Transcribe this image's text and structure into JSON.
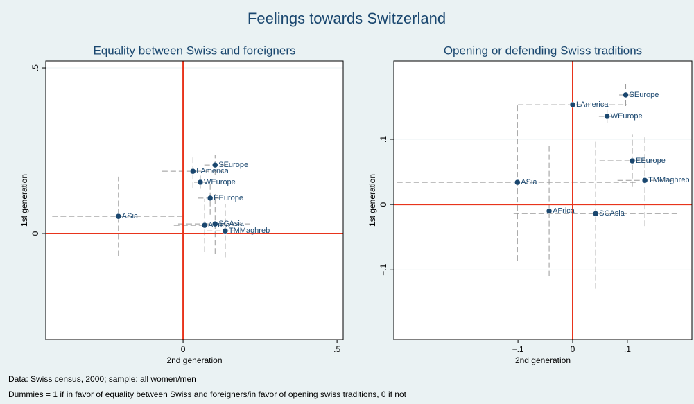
{
  "title": "Feelings towards Switzerland",
  "notes": [
    "Data: Swiss census, 2000; sample: all women/men",
    "Dummies = 1 if in favor of equality between Swiss and foreigners/in favor of opening swiss traditions, 0 if not"
  ],
  "chart_data": [
    {
      "type": "scatter",
      "title": "Equality between Swiss and foreigners",
      "xlabel": "2nd generation",
      "ylabel": "1st generation",
      "xlim": [
        -0.446,
        0.52
      ],
      "ylim": [
        -0.32,
        0.521
      ],
      "xticks": [
        0,
        {
          "value": 0.5,
          "label": ".5"
        }
      ],
      "yticks": [
        0,
        {
          "value": 0.5,
          "label": ".5"
        }
      ],
      "grid": true,
      "color": "#1a476f",
      "errcolor": "#999999",
      "refcolor": "#e8341c",
      "labels": [
        "SEurope",
        "LAmerica",
        "WEurope",
        "EEurope",
        "ASia",
        "AFrica",
        "SCAsia",
        "TMMaghreb"
      ],
      "x": [
        0.104,
        0.032,
        0.056,
        0.088,
        -0.21,
        0.07,
        0.104,
        0.137
      ],
      "y": [
        0.207,
        0.188,
        0.155,
        0.107,
        0.052,
        0.025,
        0.029,
        0.008
      ],
      "xerr": [
        0.035,
        0.1,
        0.02,
        0.04,
        0.215,
        0.1,
        0.12,
        0.06
      ],
      "yerr": [
        0.03,
        0.05,
        0.02,
        0.05,
        0.12,
        0.08,
        0.09,
        0.08
      ]
    },
    {
      "type": "scatter",
      "title": "Opening or defending Swiss traditions",
      "xlabel": "2nd generation",
      "ylabel": "1st generation",
      "xlim": [
        -0.327,
        0.218
      ],
      "ylim": [
        -0.207,
        0.22
      ],
      "xticks": [
        {
          "value": -0.1,
          "label": "−.1"
        },
        0,
        {
          "value": 0.1,
          "label": ".1"
        }
      ],
      "yticks": [
        {
          "value": -0.1,
          "label": "−.1"
        },
        0,
        {
          "value": 0.1,
          "label": ".1"
        }
      ],
      "grid": true,
      "color": "#1a476f",
      "errcolor": "#999999",
      "refcolor": "#e8341c",
      "labels": [
        "SEurope",
        "LAmerica",
        "WEurope",
        "EEurope",
        "TMMaghreb",
        "ASia",
        "AFrica",
        "SCAsia"
      ],
      "x": [
        0.097,
        0,
        0.063,
        0.109,
        0.132,
        -0.101,
        -0.043,
        0.042
      ],
      "y": [
        0.168,
        0.153,
        0.135,
        0.067,
        0.037,
        0.034,
        -0.01,
        -0.014
      ],
      "xerr": [
        0.012,
        0.1,
        0.015,
        0.06,
        0.05,
        0.22,
        0.15,
        0.15
      ],
      "yerr": [
        0.017,
        0.01,
        0.01,
        0.04,
        0.07,
        0.12,
        0.1,
        0.115
      ]
    }
  ]
}
